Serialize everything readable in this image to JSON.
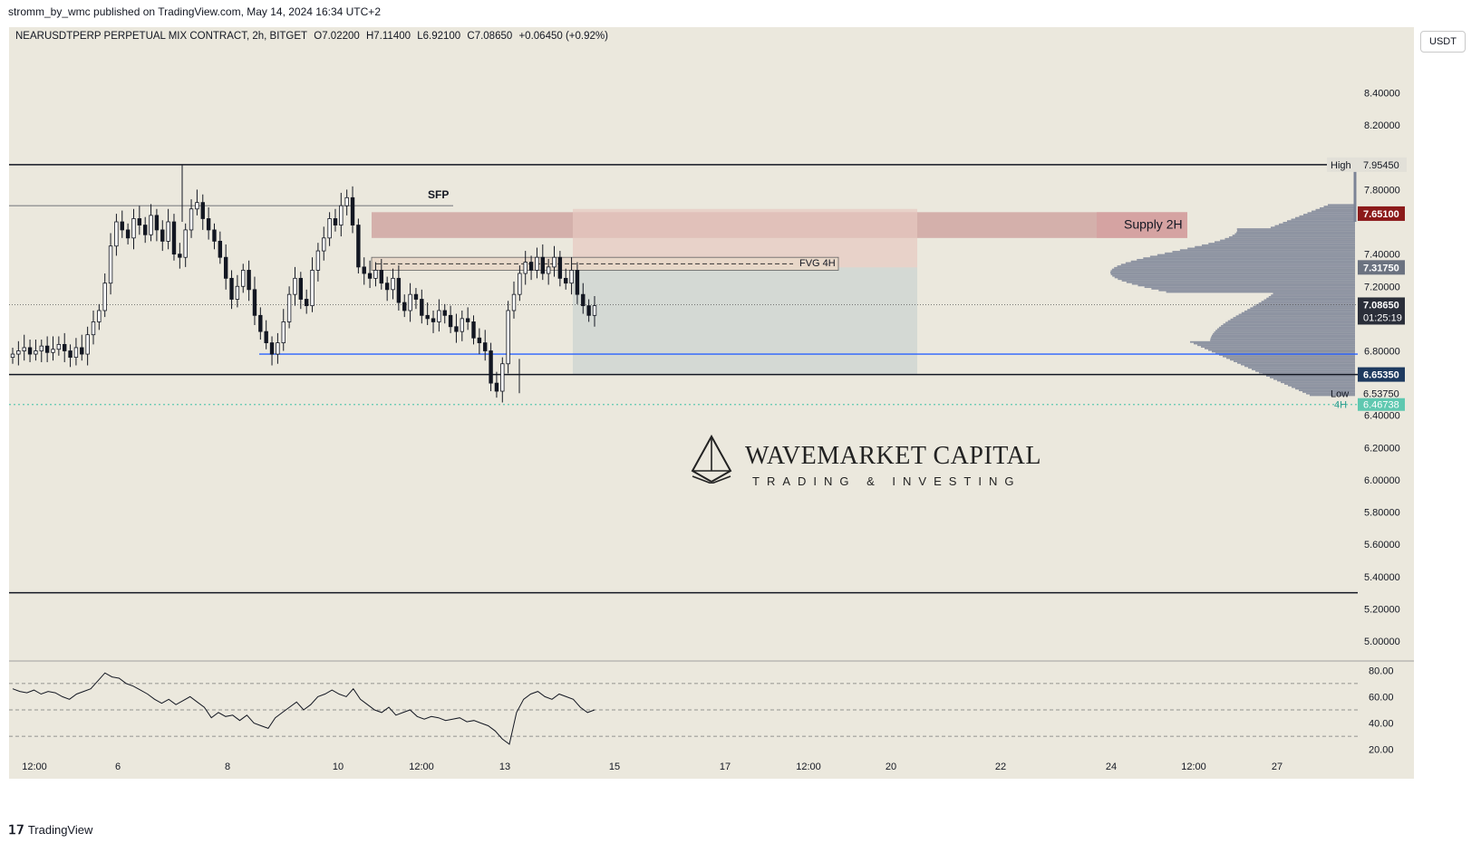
{
  "publish_line": "stromm_by_wmc published on TradingView.com, May 14, 2024 16:34 UTC+2",
  "header": {
    "symbol": "NEARUSDTPERP PERPETUAL MIX CONTRACT, 2h, BITGET",
    "open": "O7.02200",
    "high": "H7.11400",
    "low": "L6.92100",
    "close": "C7.08650",
    "change": "+0.06450 (+0.92%)"
  },
  "currency": "USDT",
  "brand": "TradingView",
  "watermark": {
    "title": "WAVEMARKET CAPITAL",
    "subtitle": "TRADING & INVESTING"
  },
  "colors": {
    "background": "#ebe8dd",
    "candle": "#131722",
    "supply_zone": "#c48a8a",
    "fvg_box": "#e8d8c8",
    "target_box": "#a9bcc4",
    "blue_line": "#2962ff",
    "profile": "#7c8496",
    "rsi_line": "#131722",
    "price_badge_red": "#8b1a1a",
    "price_badge_dark": "#2a2e39",
    "price_badge_navy": "#1e3a5f",
    "price_badge_teal": "#5fc8b0"
  },
  "chart_data": [
    {
      "type": "candlestick",
      "title": "",
      "x_tick_labels": [
        "12:00",
        "6",
        "8",
        "10",
        "12:00",
        "13",
        "15",
        "17",
        "12:00",
        "20",
        "22",
        "24",
        "12:00",
        "27"
      ],
      "y_axis_labels": [
        "8.40000",
        "8.20000",
        "7.80000",
        "7.40000",
        "7.20000",
        "6.80000",
        "6.40000",
        "6.20000",
        "6.00000",
        "5.80000",
        "5.60000",
        "5.40000",
        "5.20000",
        "5.00000"
      ],
      "ylim": [
        4.95,
        8.65
      ],
      "price_series": [
        6.78,
        6.8,
        6.82,
        6.78,
        6.8,
        6.83,
        6.79,
        6.81,
        6.84,
        6.8,
        6.76,
        6.82,
        6.78,
        6.9,
        6.98,
        7.05,
        7.22,
        7.45,
        7.6,
        7.55,
        7.5,
        7.62,
        7.58,
        7.52,
        7.64,
        7.55,
        7.48,
        7.6,
        7.4,
        7.38,
        7.55,
        7.68,
        7.72,
        7.62,
        7.55,
        7.48,
        7.38,
        7.25,
        7.12,
        7.2,
        7.3,
        7.18,
        7.02,
        6.92,
        6.85,
        6.78,
        6.85,
        6.98,
        7.15,
        7.25,
        7.12,
        7.08,
        7.3,
        7.42,
        7.5,
        7.62,
        7.58,
        7.7,
        7.75,
        7.58,
        7.32,
        7.28,
        7.25,
        7.3,
        7.22,
        7.18,
        7.25,
        7.1,
        7.05,
        7.15,
        7.12,
        7.02,
        7.0,
        6.98,
        7.05,
        7.02,
        6.95,
        6.92,
        7.0,
        6.98,
        6.88,
        6.85,
        6.8,
        6.6,
        6.55,
        6.72,
        7.05,
        7.15,
        7.28,
        7.35,
        7.3,
        7.38,
        7.28,
        7.32,
        7.38,
        7.25,
        7.22,
        7.3,
        7.15,
        7.08,
        7.02,
        7.08
      ],
      "series_high": 7.9545,
      "series_low": 6.5375,
      "annotations": [
        {
          "label": "SFP",
          "price": 7.7
        },
        {
          "label": "FVG 4H",
          "price_top": 7.38,
          "price_bottom": 7.3
        },
        {
          "label": "Supply 2H",
          "price_top": 7.66,
          "price_bottom": 7.5
        }
      ],
      "horizontal_levels": [
        {
          "label": "High",
          "price": 7.9545,
          "value_text": "7.95450"
        },
        {
          "price": 6.6535,
          "value_text": "6.65350"
        },
        {
          "price": 6.78
        },
        {
          "label": "Low",
          "price": 6.5375,
          "value_text": "6.53750"
        },
        {
          "label": "4H",
          "price": 6.46738,
          "value_text": "6.46738"
        },
        {
          "price": 5.3
        }
      ],
      "price_badges": [
        {
          "value_text": "7.65100",
          "price": 7.651
        },
        {
          "value_text": "7.31750",
          "price": 7.3175
        },
        {
          "value_text": "7.08650",
          "price": 7.0865,
          "countdown": "01:25:19"
        },
        {
          "value_text": "6.65350",
          "price": 6.6535
        }
      ]
    },
    {
      "type": "line",
      "title": "",
      "y_axis_labels": [
        "80.00",
        "60.00",
        "40.00",
        "20.00"
      ],
      "ylim": [
        15,
        85
      ],
      "guide_levels": [
        70,
        50,
        30
      ],
      "values": [
        66,
        64,
        63,
        65,
        62,
        64,
        63,
        60,
        58,
        62,
        64,
        66,
        72,
        78,
        75,
        74,
        70,
        68,
        65,
        62,
        58,
        55,
        58,
        54,
        57,
        60,
        56,
        52,
        44,
        48,
        45,
        46,
        42,
        46,
        40,
        38,
        36,
        44,
        48,
        52,
        56,
        50,
        54,
        60,
        62,
        65,
        62,
        60,
        66,
        58,
        54,
        50,
        48,
        52,
        46,
        48,
        50,
        45,
        43,
        45,
        44,
        42,
        43,
        44,
        41,
        42,
        40,
        38,
        34,
        28,
        24,
        48,
        58,
        62,
        64,
        60,
        58,
        62,
        60,
        58,
        52,
        48,
        50
      ]
    }
  ]
}
